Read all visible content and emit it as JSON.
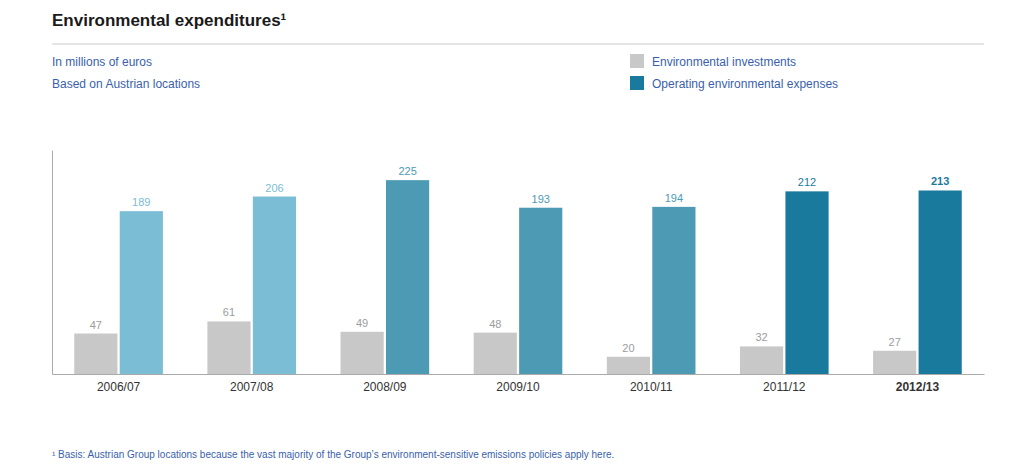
{
  "chart_data": {
    "type": "bar",
    "title": "Environmental expenditures¹",
    "subtitle": [
      "In millions of euros",
      "Based on Austrian locations"
    ],
    "annotations": [
      "¹ Basis: Austrian Group locations because the vast majority of the Group’s environment-sensitive emissions policies apply here."
    ],
    "categories": [
      "2006/07",
      "2007/08",
      "2008/09",
      "2009/10",
      "2010/11",
      "2011/12",
      "2012/13"
    ],
    "series": [
      {
        "name": "Environmental investments",
        "color": "#c8c8c8",
        "values": [
          47,
          61,
          49,
          48,
          20,
          32,
          27
        ]
      },
      {
        "name": "Operating environmental expenses",
        "color": "#1a7a9e",
        "colors": [
          "#7bbdd4",
          "#7bbdd4",
          "#4d9ab5",
          "#4d9ab5",
          "#4d9ab5",
          "#1a7a9e",
          "#1a7a9e"
        ],
        "values": [
          189,
          206,
          225,
          193,
          194,
          212,
          213
        ]
      }
    ],
    "ylim": [
      0,
      260
    ],
    "tick_labels": "x",
    "data_labels": true,
    "grid": false,
    "legend": "top-right"
  }
}
